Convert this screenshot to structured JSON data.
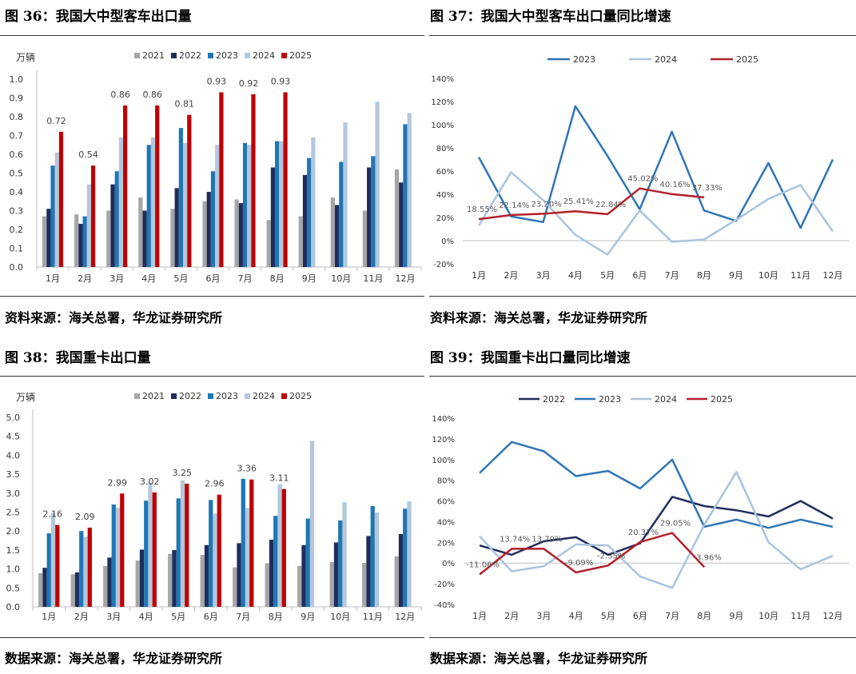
{
  "panels": {
    "p36": {
      "title": "图 36：我国大中型客车出口量",
      "source": "资料来源：海关总署，华龙证券研究所"
    },
    "p37": {
      "title": "图 37：我国大中型客车出口量同比增速",
      "source": "资料来源：海关总署，华龙证券研究所"
    },
    "p38": {
      "title": "图 38：我国重卡出口量",
      "source": "数据来源：海关总署，华龙证券研究所"
    },
    "p39": {
      "title": "图 39：我国重卡出口量同比增速",
      "source": "数据来源：海关总署，华龙证券研究所"
    }
  },
  "chart_data": [
    {
      "id": "c36",
      "type": "bar",
      "unit": "万辆",
      "categories": [
        "1月",
        "2月",
        "3月",
        "4月",
        "5月",
        "6月",
        "7月",
        "8月",
        "9月",
        "10月",
        "11月",
        "12月"
      ],
      "ylim": [
        0,
        1.0
      ],
      "yticks": [
        0,
        0.1,
        0.2,
        0.3,
        0.4,
        0.5,
        0.6,
        0.7,
        0.8,
        0.9,
        1.0
      ],
      "ytick_labels": [
        "0.0",
        "0.1",
        "0.2",
        "0.3",
        "0.4",
        "0.5",
        "0.6",
        "0.7",
        "0.8",
        "0.9",
        "1.0"
      ],
      "legend": "top",
      "series": [
        {
          "name": "2021",
          "color": "#A6A6A6",
          "values": [
            0.27,
            0.28,
            0.3,
            0.37,
            0.31,
            0.35,
            0.36,
            0.25,
            0.27,
            0.37,
            0.3,
            0.52
          ]
        },
        {
          "name": "2022",
          "color": "#1F2D5C",
          "values": [
            0.31,
            0.23,
            0.44,
            0.3,
            0.42,
            0.4,
            0.34,
            0.53,
            0.49,
            0.33,
            0.53,
            0.45
          ]
        },
        {
          "name": "2023",
          "color": "#1F77B4",
          "values": [
            0.54,
            0.27,
            0.51,
            0.65,
            0.74,
            0.51,
            0.66,
            0.67,
            0.58,
            0.56,
            0.59,
            0.76
          ]
        },
        {
          "name": "2024",
          "color": "#B4C7DC",
          "values": [
            0.61,
            0.44,
            0.69,
            0.69,
            0.66,
            0.65,
            0.65,
            0.67,
            0.69,
            0.77,
            0.88,
            0.82
          ]
        },
        {
          "name": "2025",
          "color": "#C00000",
          "values": [
            0.72,
            0.54,
            0.86,
            0.86,
            0.81,
            0.93,
            0.92,
            0.93,
            null,
            null,
            null,
            null
          ]
        }
      ],
      "data_labels": [
        "0.72",
        "0.54",
        "0.86",
        "0.86",
        "0.81",
        "0.93",
        "0.92",
        "0.93"
      ]
    },
    {
      "id": "c37",
      "type": "line",
      "categories": [
        "1月",
        "2月",
        "3月",
        "4月",
        "5月",
        "6月",
        "7月",
        "8月",
        "9月",
        "10月",
        "11月",
        "12月"
      ],
      "ylim": [
        -20,
        140
      ],
      "yticks": [
        -20,
        0,
        20,
        40,
        60,
        80,
        100,
        120,
        140
      ],
      "ytick_labels": [
        "-20%",
        "0%",
        "20%",
        "40%",
        "60%",
        "80%",
        "100%",
        "120%",
        "140%"
      ],
      "legend": "top",
      "series": [
        {
          "name": "2023",
          "color": "#2E75B6",
          "values": [
            72,
            21,
            16,
            116,
            73,
            27,
            94,
            26,
            17,
            67,
            11,
            70
          ]
        },
        {
          "name": "2024",
          "color": "#A9C4DE",
          "values": [
            13,
            59,
            35,
            5,
            -12,
            26,
            -1,
            1,
            18,
            36,
            48,
            8
          ]
        },
        {
          "name": "2025",
          "color": "#B3202A",
          "values": [
            18.55,
            22.14,
            23.2,
            25.41,
            22.84,
            45.02,
            40.16,
            37.33,
            null,
            null,
            null,
            null
          ]
        }
      ],
      "data_labels": [
        "18.55%",
        "22.14%",
        "23.20%",
        "25.41%",
        "22.84%",
        "45.02%",
        "40.16%",
        "37.33%"
      ]
    },
    {
      "id": "c38",
      "type": "bar",
      "unit": "万辆",
      "categories": [
        "1月",
        "2月",
        "3月",
        "4月",
        "5月",
        "6月",
        "7月",
        "8月",
        "9月",
        "10月",
        "11月",
        "12月"
      ],
      "ylim": [
        0,
        5.0
      ],
      "yticks": [
        0,
        0.5,
        1,
        1.5,
        2,
        2.5,
        3,
        3.5,
        4,
        4.5,
        5
      ],
      "ytick_labels": [
        "0.0",
        "0.5",
        "1.0",
        "1.5",
        "2.0",
        "2.5",
        "3.0",
        "3.5",
        "4.0",
        "4.5",
        "5.0"
      ],
      "legend": "top",
      "series": [
        {
          "name": "2021",
          "color": "#A6A6A6",
          "values": [
            0.89,
            0.86,
            1.08,
            1.22,
            1.4,
            1.37,
            1.04,
            1.15,
            1.08,
            1.18,
            1.16,
            1.33
          ]
        },
        {
          "name": "2022",
          "color": "#1F2D5C",
          "values": [
            1.03,
            0.91,
            1.3,
            1.51,
            1.5,
            1.63,
            1.68,
            1.77,
            1.63,
            1.7,
            1.87,
            1.92
          ]
        },
        {
          "name": "2023",
          "color": "#1F77B4",
          "values": [
            1.94,
            2.0,
            2.7,
            2.8,
            2.86,
            2.82,
            3.38,
            2.4,
            2.33,
            2.28,
            2.66,
            2.59
          ]
        },
        {
          "name": "2024",
          "color": "#B4C7DC",
          "values": [
            2.48,
            1.85,
            2.62,
            3.28,
            3.34,
            2.46,
            2.61,
            3.23,
            4.38,
            2.76,
            2.49,
            2.78
          ]
        },
        {
          "name": "2025",
          "color": "#C00000",
          "values": [
            2.16,
            2.09,
            2.99,
            3.02,
            3.25,
            2.96,
            3.36,
            3.11,
            null,
            null,
            null,
            null
          ]
        }
      ],
      "data_labels": [
        "2.16",
        "2.09",
        "2.99",
        "3.02",
        "3.25",
        "2.96",
        "3.36",
        "3.11"
      ]
    },
    {
      "id": "c39",
      "type": "line",
      "categories": [
        "1月",
        "2月",
        "3月",
        "4月",
        "5月",
        "6月",
        "7月",
        "8月",
        "9月",
        "10月",
        "11月",
        "12月"
      ],
      "ylim": [
        -40,
        140
      ],
      "yticks": [
        -40,
        -20,
        0,
        20,
        40,
        60,
        80,
        100,
        120,
        140
      ],
      "ytick_labels": [
        "-40%",
        "-20%",
        "0%",
        "20%",
        "40%",
        "60%",
        "80%",
        "100%",
        "120%",
        "140%"
      ],
      "legend": "top",
      "series": [
        {
          "name": "2022",
          "color": "#1F2D5C",
          "values": [
            17,
            8,
            21,
            25,
            8,
            19,
            64,
            55,
            51,
            45,
            60,
            43
          ]
        },
        {
          "name": "2023",
          "color": "#2E75B6",
          "values": [
            87,
            117,
            108,
            84,
            89,
            72,
            100,
            35,
            42,
            34,
            42,
            35
          ]
        },
        {
          "name": "2024",
          "color": "#A9C4DE",
          "values": [
            26,
            -8,
            -3,
            18,
            17,
            -13,
            -24,
            37,
            88,
            20,
            -6,
            7
          ]
        },
        {
          "name": "2025",
          "color": "#B3202A",
          "values": [
            -11.06,
            13.74,
            13.79,
            -9.09,
            -2.35,
            20.37,
            29.05,
            -3.96,
            null,
            null,
            null,
            null
          ]
        }
      ],
      "data_labels": [
        "-11.06%",
        "13.74%",
        "13.79%",
        "-9.09%",
        "-2.35%",
        "20.37%",
        "29.05%",
        "-3.96%"
      ]
    }
  ]
}
